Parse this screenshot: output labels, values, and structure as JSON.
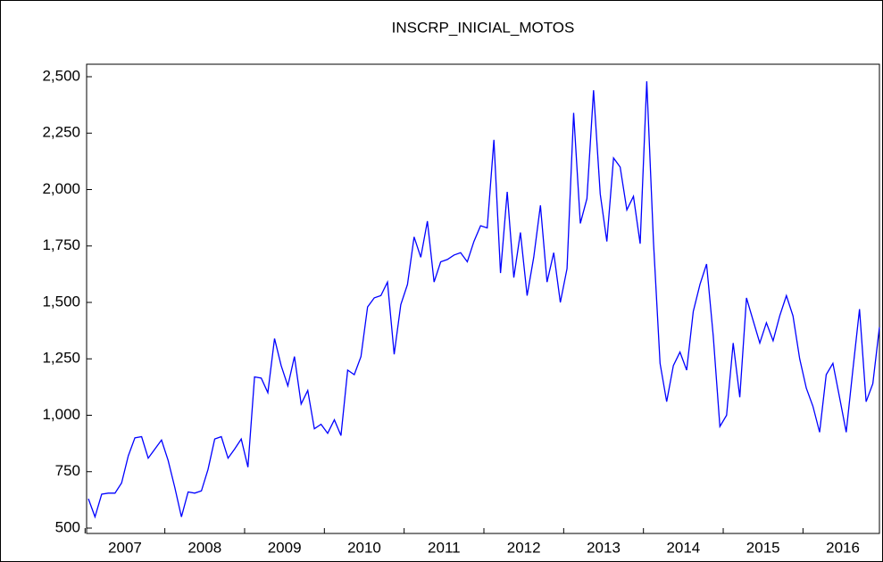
{
  "chart_data": {
    "type": "line",
    "title": "INSCRP_INICIAL_MOTOS",
    "categories": [
      "2007",
      null,
      null,
      null,
      null,
      null,
      null,
      null,
      null,
      null,
      null,
      null,
      "2008",
      null,
      null,
      null,
      null,
      null,
      null,
      null,
      null,
      null,
      null,
      null,
      "2009",
      null,
      null,
      null,
      null,
      null,
      null,
      null,
      null,
      null,
      null,
      null,
      "2010",
      null,
      null,
      null,
      null,
      null,
      null,
      null,
      null,
      null,
      null,
      null,
      "2011",
      null,
      null,
      null,
      null,
      null,
      null,
      null,
      null,
      null,
      null,
      null,
      "2012",
      null,
      null,
      null,
      null,
      null,
      null,
      null,
      null,
      null,
      null,
      null,
      "2013",
      null,
      null,
      null,
      null,
      null,
      null,
      null,
      null,
      null,
      null,
      null,
      "2014",
      null,
      null,
      null,
      null,
      null,
      null,
      null,
      null,
      null,
      null,
      null,
      "2015",
      null,
      null,
      null,
      null,
      null,
      null,
      null,
      null,
      null,
      null,
      null,
      "2016",
      null,
      null,
      null,
      null,
      null,
      null,
      null,
      null,
      null,
      null,
      null
    ],
    "series": [
      {
        "color": "#0000ff",
        "values": [
          630,
          550,
          650,
          655,
          655,
          700,
          820,
          900,
          905,
          810,
          850,
          890,
          800,
          680,
          550,
          660,
          655,
          665,
          760,
          895,
          905,
          810,
          850,
          895,
          770,
          1170,
          1165,
          1100,
          1340,
          1220,
          1130,
          1260,
          1050,
          1110,
          940,
          960,
          920,
          980,
          910,
          1200,
          1180,
          1260,
          1480,
          1520,
          1530,
          1590,
          1270,
          1490,
          1580,
          1790,
          1700,
          1860,
          1590,
          1680,
          1690,
          1710,
          1720,
          1680,
          1770,
          1840,
          1830,
          2220,
          1630,
          1990,
          1610,
          1810,
          1530,
          1700,
          1930,
          1590,
          1720,
          1500,
          1650,
          2340,
          1850,
          1960,
          2440,
          1980,
          1770,
          2140,
          2100,
          1910,
          1970,
          1760,
          2480,
          1770,
          1230,
          1060,
          1220,
          1280,
          1200,
          1460,
          1580,
          1670,
          1350,
          950,
          1000,
          1320,
          1080,
          1520,
          1420,
          1320,
          1410,
          1330,
          1440,
          1530,
          1440,
          1250,
          1120,
          1040,
          925,
          1180,
          1230,
          1080,
          925,
          1200,
          1470,
          1060,
          1140,
          1390
        ]
      }
    ],
    "ylim": [
      500,
      2500
    ],
    "yticks": [
      500,
      750,
      {
        "value": 1000,
        "label": "1,000"
      },
      {
        "value": 1250,
        "label": "1,250"
      },
      {
        "value": 1500,
        "label": "1,500"
      },
      {
        "value": 1750,
        "label": "1,750"
      },
      {
        "value": 2000,
        "label": "2,000"
      },
      {
        "value": 2250,
        "label": "2,250"
      },
      {
        "value": 2500,
        "label": "2,500"
      }
    ]
  }
}
